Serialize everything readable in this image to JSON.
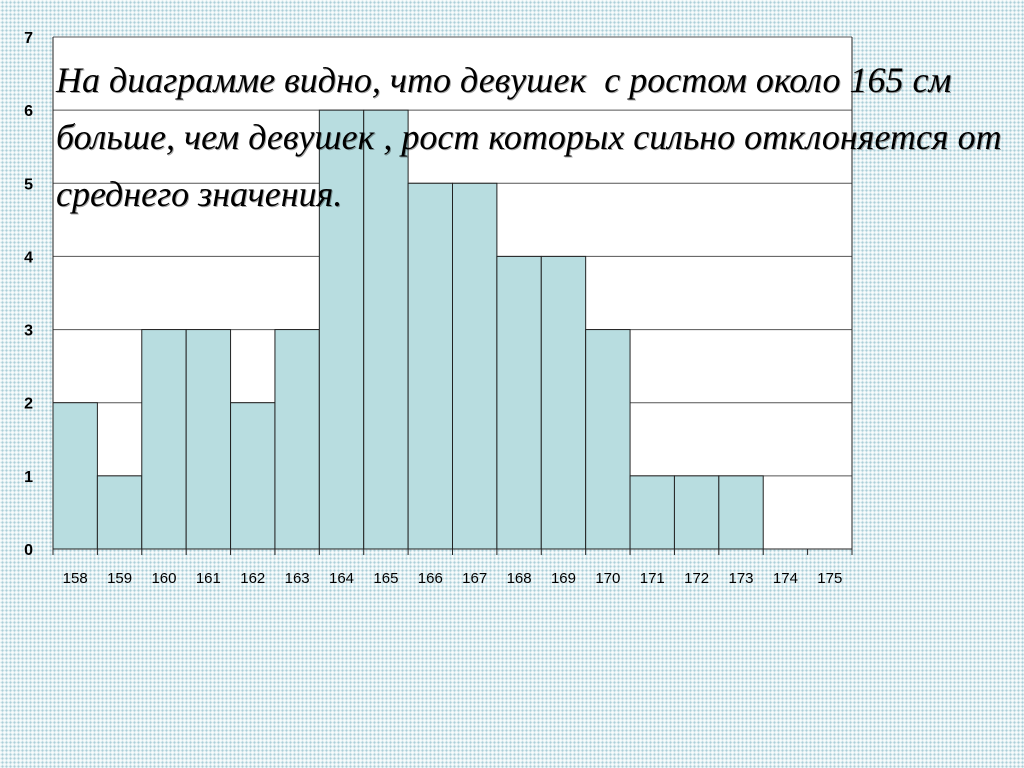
{
  "caption": "На диаграмме видно, что девушек  с ростом около 165 см больше, чем девушек , рост которых сильно отклоняется от среднего значения.",
  "chart_data": {
    "type": "bar",
    "title": "",
    "xlabel": "",
    "ylabel": "",
    "categories": [
      "158",
      "159",
      "160",
      "161",
      "162",
      "163",
      "164",
      "165",
      "166",
      "167",
      "168",
      "169",
      "170",
      "171",
      "172",
      "173",
      "174",
      "175"
    ],
    "values": [
      2,
      1,
      3,
      3,
      2,
      3,
      6,
      6,
      5,
      5,
      4,
      4,
      3,
      1,
      1,
      1,
      0,
      0
    ],
    "ylim": [
      0,
      7
    ],
    "yticks": [
      0,
      1,
      2,
      3,
      4,
      5,
      6,
      7
    ],
    "grid": true,
    "legend": "none",
    "colors": {
      "bar_fill": "#b8dde0",
      "bar_stroke": "#222222",
      "gridline": "#555555",
      "plot_background": "#ffffff"
    }
  }
}
